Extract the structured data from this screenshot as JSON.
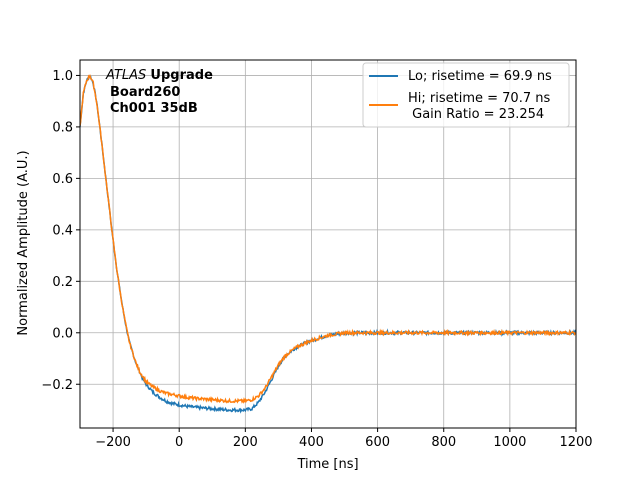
{
  "chart_data": {
    "type": "line",
    "xlabel": "Time [ns]",
    "ylabel": "Normalized Amplitude (A.U.)",
    "xlim": [
      -300,
      1200
    ],
    "ylim": [
      -0.37,
      1.06
    ],
    "xticks": [
      -200,
      0,
      200,
      400,
      600,
      800,
      1000,
      1200
    ],
    "xtick_labels": [
      "−200",
      "0",
      "200",
      "400",
      "600",
      "800",
      "1000",
      "1200"
    ],
    "yticks": [
      -0.2,
      0.0,
      0.2,
      0.4,
      0.6,
      0.8,
      1.0
    ],
    "ytick_labels": [
      "−0.2",
      "0.0",
      "0.2",
      "0.4",
      "0.6",
      "0.8",
      "1.0"
    ],
    "grid": true,
    "legend_position": "top-right",
    "annotation": {
      "experiment": "ATLAS",
      "experiment_suffix": "Upgrade",
      "line2": "Board260",
      "line3": "Ch001 35dB"
    },
    "series": [
      {
        "name": "Lo; risetime = 69.9 ns",
        "color": "#1f77b4",
        "x": [
          -300,
          -290,
          -280,
          -270,
          -260,
          -250,
          -240,
          -230,
          -220,
          -210,
          -200,
          -190,
          -180,
          -170,
          -160,
          -150,
          -140,
          -130,
          -120,
          -110,
          -100,
          -80,
          -60,
          -40,
          -20,
          0,
          20,
          50,
          100,
          150,
          200,
          220,
          240,
          260,
          280,
          300,
          320,
          350,
          380,
          400,
          450,
          500,
          600,
          700,
          800,
          900,
          1000,
          1100,
          1200
        ],
        "y": [
          0.8,
          0.93,
          0.98,
          1.0,
          0.97,
          0.9,
          0.8,
          0.69,
          0.58,
          0.47,
          0.36,
          0.26,
          0.17,
          0.09,
          0.02,
          -0.04,
          -0.08,
          -0.12,
          -0.15,
          -0.18,
          -0.2,
          -0.23,
          -0.25,
          -0.265,
          -0.275,
          -0.28,
          -0.285,
          -0.29,
          -0.295,
          -0.3,
          -0.3,
          -0.295,
          -0.27,
          -0.23,
          -0.18,
          -0.13,
          -0.09,
          -0.06,
          -0.04,
          -0.03,
          -0.01,
          0.0,
          0.0,
          0.0,
          0.0,
          0.0,
          0.0,
          0.0,
          0.0
        ]
      },
      {
        "name": "Hi; risetime = 70.7 ns\n Gain Ratio = 23.254",
        "color": "#ff7f0e",
        "x": [
          -300,
          -290,
          -280,
          -270,
          -260,
          -250,
          -240,
          -230,
          -220,
          -210,
          -200,
          -190,
          -180,
          -170,
          -160,
          -150,
          -140,
          -130,
          -120,
          -110,
          -100,
          -80,
          -60,
          -40,
          -20,
          0,
          20,
          50,
          100,
          150,
          200,
          220,
          240,
          260,
          280,
          300,
          320,
          350,
          380,
          400,
          450,
          500,
          600,
          700,
          800,
          900,
          1000,
          1100,
          1200
        ],
        "y": [
          0.8,
          0.93,
          0.98,
          1.0,
          0.97,
          0.9,
          0.8,
          0.69,
          0.58,
          0.47,
          0.36,
          0.26,
          0.17,
          0.09,
          0.02,
          -0.04,
          -0.08,
          -0.12,
          -0.15,
          -0.17,
          -0.19,
          -0.21,
          -0.225,
          -0.235,
          -0.24,
          -0.245,
          -0.25,
          -0.255,
          -0.26,
          -0.265,
          -0.265,
          -0.26,
          -0.245,
          -0.215,
          -0.17,
          -0.125,
          -0.09,
          -0.06,
          -0.04,
          -0.03,
          -0.01,
          0.0,
          0.0,
          0.0,
          0.0,
          0.0,
          0.0,
          0.0,
          0.0
        ]
      }
    ]
  }
}
